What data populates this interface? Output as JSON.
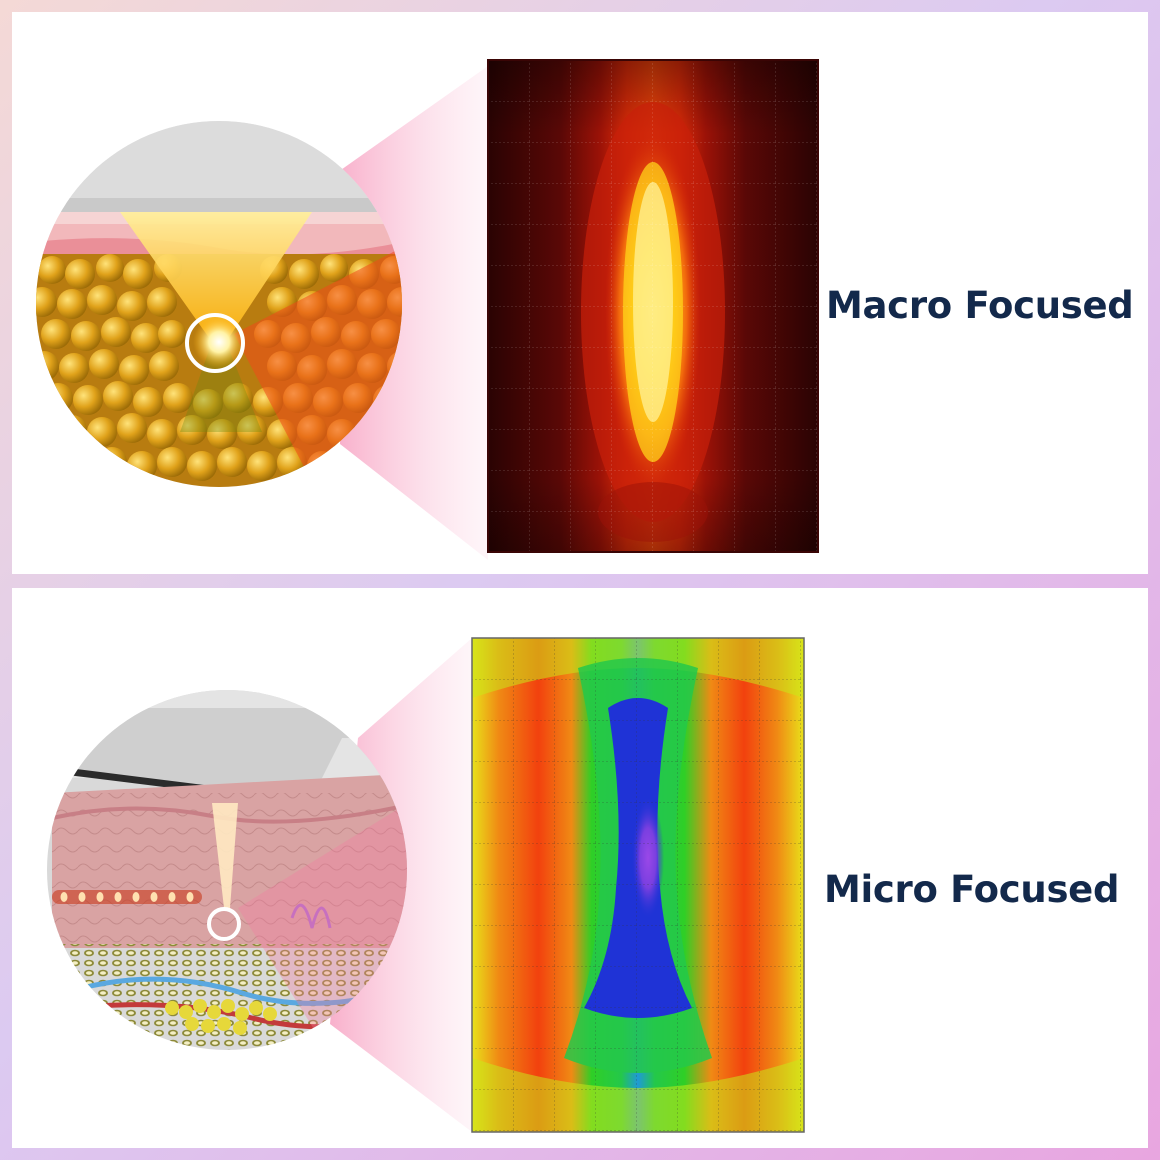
{
  "panels": {
    "macro": {
      "label": "Macro Focused",
      "heatmap_palette": [
        "#2a0303",
        "#5a0806",
        "#9b1207",
        "#d62a08",
        "#f26a0c",
        "#ffd21a",
        "#fff6a8"
      ],
      "tissue_colors": {
        "fat": "#e0a21a",
        "skin": "#f2b8bb",
        "beam": "#ffe14a"
      }
    },
    "micro": {
      "label": "Micro Focused",
      "heatmap_palette": [
        "#e8ef1a",
        "#f08a14",
        "#f2410e",
        "#2fcf26",
        "#24c84a",
        "#1f33d6",
        "#7a3fe0"
      ],
      "tissue_colors": {
        "dermis": "#d9a3a3",
        "fat": "#c9c24a",
        "dots": "#ffa35c"
      }
    }
  },
  "colors": {
    "label_text": "#13294b",
    "zoom_cone": "#f7a2c2",
    "circle_highlight": "#ffffff"
  }
}
